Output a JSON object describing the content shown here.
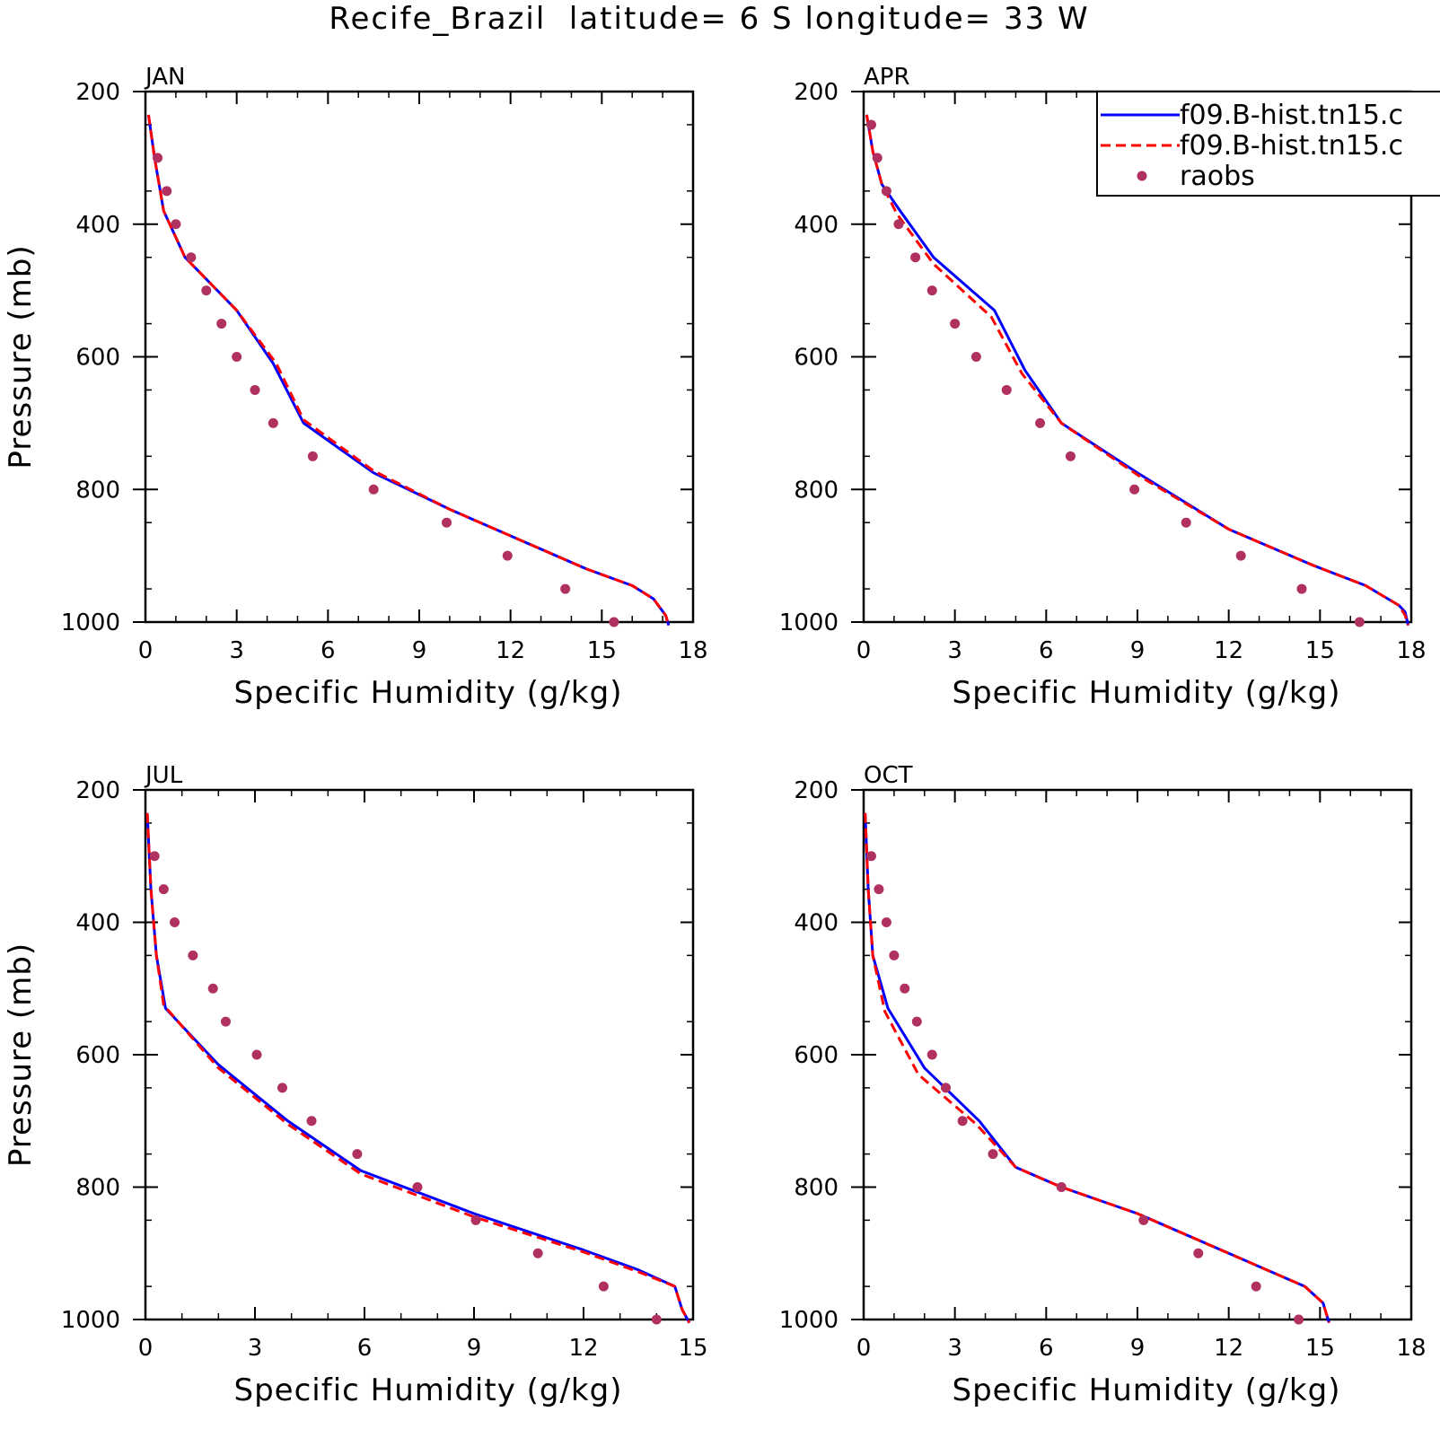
{
  "title": "Recife_Brazil  latitude= 6 S longitude= 33 W",
  "legend": [
    {
      "label": "f09.B-hist.tn15.c",
      "color": "#0000ff",
      "style": "solid"
    },
    {
      "label": "f09.B-hist.tn15.c",
      "color": "#ff0000",
      "style": "dashed"
    },
    {
      "label": "raobs",
      "color": "#b03060",
      "style": "marker"
    }
  ],
  "chart_data": [
    {
      "type": "line",
      "panel": "JAN",
      "xlabel": "Specific Humidity (g/kg)",
      "ylabel": "Pressure (mb)",
      "xlim": [
        0,
        18
      ],
      "ylim": [
        1000,
        200
      ],
      "xticks": [
        0,
        3,
        6,
        9,
        12,
        15,
        18
      ],
      "yticks": [
        200,
        400,
        600,
        800,
        1000
      ],
      "series": [
        {
          "name": "f09.B-hist.tn15.c",
          "color": "#0000ff",
          "style": "solid",
          "x": [
            0.1,
            0.3,
            0.6,
            1.3,
            3.0,
            4.2,
            5.2,
            7.5,
            10.0,
            12.0,
            14.5,
            16.0,
            16.7,
            17.1,
            17.2
          ],
          "y": [
            235,
            300,
            380,
            450,
            530,
            610,
            700,
            775,
            830,
            870,
            920,
            945,
            965,
            990,
            1005
          ]
        },
        {
          "name": "f09.B-hist.tn15.c",
          "color": "#ff0000",
          "style": "dashed",
          "x": [
            0.1,
            0.3,
            0.6,
            1.3,
            3.0,
            4.3,
            5.2,
            7.5,
            10.0,
            12.0,
            14.5,
            16.0,
            16.7,
            17.1,
            17.2
          ],
          "y": [
            235,
            300,
            380,
            450,
            530,
            610,
            695,
            772,
            830,
            870,
            920,
            945,
            965,
            990,
            1005
          ]
        },
        {
          "name": "raobs",
          "color": "#b03060",
          "style": "marker",
          "x": [
            0.4,
            0.7,
            1.0,
            1.5,
            2.0,
            2.5,
            3.0,
            3.6,
            4.2,
            5.5,
            7.5,
            9.9,
            11.9,
            13.8,
            15.4
          ],
          "y": [
            300,
            350,
            400,
            450,
            500,
            550,
            600,
            650,
            700,
            750,
            800,
            850,
            900,
            950,
            1000
          ]
        }
      ]
    },
    {
      "type": "line",
      "panel": "APR",
      "xlabel": "Specific Humidity (g/kg)",
      "ylabel": "",
      "xlim": [
        0,
        18
      ],
      "ylim": [
        1000,
        200
      ],
      "xticks": [
        0,
        3,
        6,
        9,
        12,
        15,
        18
      ],
      "yticks": [
        200,
        400,
        600,
        800,
        1000
      ],
      "series": [
        {
          "name": "f09.B-hist.tn15.c",
          "color": "#0000ff",
          "style": "solid",
          "x": [
            0.1,
            0.3,
            0.6,
            1.2,
            2.3,
            4.3,
            5.3,
            6.5,
            9.0,
            12.0,
            14.8,
            16.5,
            17.6,
            17.8,
            17.9
          ],
          "y": [
            235,
            290,
            340,
            380,
            450,
            530,
            620,
            700,
            775,
            860,
            915,
            945,
            975,
            985,
            1005
          ]
        },
        {
          "name": "f09.B-hist.tn15.c",
          "color": "#ff0000",
          "style": "dashed",
          "x": [
            0.1,
            0.3,
            0.6,
            1.1,
            2.3,
            4.2,
            5.2,
            6.5,
            9.0,
            12.0,
            14.8,
            16.5,
            17.6,
            17.8,
            17.9
          ],
          "y": [
            235,
            290,
            340,
            385,
            460,
            540,
            625,
            700,
            778,
            860,
            915,
            945,
            975,
            990,
            1005
          ]
        },
        {
          "name": "raobs",
          "color": "#b03060",
          "style": "marker",
          "x": [
            0.25,
            0.45,
            0.75,
            1.15,
            1.7,
            2.25,
            3.0,
            3.7,
            4.7,
            5.8,
            6.8,
            8.9,
            10.6,
            12.4,
            14.4,
            16.3
          ],
          "y": [
            250,
            300,
            350,
            400,
            450,
            500,
            550,
            600,
            650,
            700,
            750,
            800,
            850,
            900,
            950,
            1000
          ]
        }
      ]
    },
    {
      "type": "line",
      "panel": "JUL",
      "xlabel": "Specific Humidity (g/kg)",
      "ylabel": "Pressure (mb)",
      "xlim": [
        0,
        15
      ],
      "ylim": [
        1000,
        200
      ],
      "xticks": [
        0,
        3,
        6,
        9,
        12,
        15
      ],
      "yticks": [
        200,
        400,
        600,
        800,
        1000
      ],
      "series": [
        {
          "name": "f09.B-hist.tn15.c",
          "color": "#0000ff",
          "style": "solid",
          "x": [
            0.05,
            0.15,
            0.3,
            0.55,
            2.0,
            3.9,
            5.9,
            9.0,
            12.0,
            13.5,
            14.5,
            14.7,
            14.9
          ],
          "y": [
            235,
            350,
            450,
            530,
            615,
            700,
            775,
            840,
            895,
            925,
            950,
            985,
            1005
          ]
        },
        {
          "name": "f09.B-hist.tn15.c",
          "color": "#ff0000",
          "style": "dashed",
          "x": [
            0.05,
            0.15,
            0.3,
            0.5,
            2.0,
            3.9,
            5.9,
            9.0,
            12.0,
            13.5,
            14.5,
            14.7,
            14.9
          ],
          "y": [
            235,
            350,
            450,
            525,
            620,
            705,
            780,
            845,
            898,
            928,
            950,
            985,
            1005
          ]
        },
        {
          "name": "raobs",
          "color": "#b03060",
          "style": "marker",
          "x": [
            0.25,
            0.5,
            0.8,
            1.3,
            1.85,
            2.2,
            3.05,
            3.75,
            4.55,
            5.8,
            7.45,
            9.05,
            10.75,
            12.55,
            14.0
          ],
          "y": [
            300,
            350,
            400,
            450,
            500,
            550,
            600,
            650,
            700,
            750,
            800,
            850,
            900,
            950,
            1000
          ]
        }
      ]
    },
    {
      "type": "line",
      "panel": "OCT",
      "xlabel": "Specific Humidity (g/kg)",
      "ylabel": "",
      "xlim": [
        0,
        18
      ],
      "ylim": [
        1000,
        200
      ],
      "xticks": [
        0,
        3,
        6,
        9,
        12,
        15,
        18
      ],
      "yticks": [
        200,
        400,
        600,
        800,
        1000
      ],
      "series": [
        {
          "name": "f09.B-hist.tn15.c",
          "color": "#0000ff",
          "style": "solid",
          "x": [
            0.05,
            0.15,
            0.3,
            0.8,
            2.0,
            3.8,
            5.0,
            6.5,
            9.0,
            12.0,
            14.5,
            15.1,
            15.3
          ],
          "y": [
            235,
            350,
            450,
            530,
            620,
            700,
            770,
            800,
            840,
            900,
            950,
            975,
            1005
          ]
        },
        {
          "name": "f09.B-hist.tn15.c",
          "color": "#ff0000",
          "style": "dashed",
          "x": [
            0.05,
            0.15,
            0.3,
            0.7,
            1.8,
            3.7,
            5.0,
            6.5,
            9.0,
            12.0,
            14.5,
            15.1,
            15.3
          ],
          "y": [
            235,
            350,
            450,
            535,
            630,
            705,
            770,
            800,
            840,
            900,
            950,
            975,
            1005
          ]
        },
        {
          "name": "raobs",
          "color": "#b03060",
          "style": "marker",
          "x": [
            0.25,
            0.5,
            0.75,
            1.0,
            1.35,
            1.75,
            2.25,
            2.7,
            3.25,
            4.25,
            6.5,
            9.2,
            11.0,
            12.9,
            14.3
          ],
          "y": [
            300,
            350,
            400,
            450,
            500,
            550,
            600,
            650,
            700,
            750,
            800,
            850,
            900,
            950,
            1000
          ]
        }
      ]
    }
  ]
}
